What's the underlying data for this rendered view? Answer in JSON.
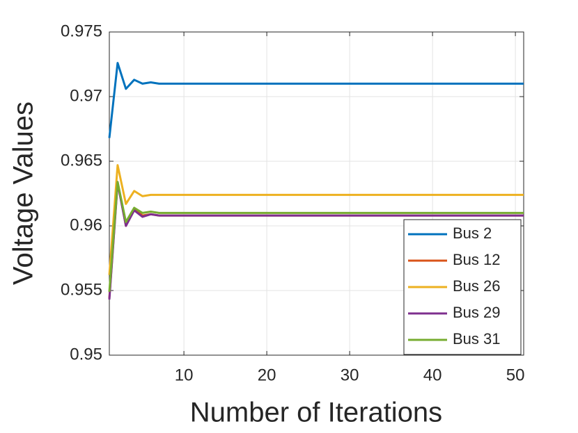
{
  "chart_data": {
    "type": "line",
    "xlabel": "Number of Iterations",
    "ylabel": "Voltage Values",
    "x": [
      1,
      2,
      3,
      4,
      5,
      6,
      7,
      8,
      9,
      10,
      11,
      12,
      13,
      14,
      15,
      16,
      17,
      18,
      19,
      20,
      21,
      22,
      23,
      24,
      25,
      26,
      27,
      28,
      29,
      30,
      31,
      32,
      33,
      34,
      35,
      36,
      37,
      38,
      39,
      40,
      41,
      42,
      43,
      44,
      45,
      46,
      47,
      48,
      49,
      50,
      51
    ],
    "series": [
      {
        "name": "Bus 2",
        "color": "#0072BD",
        "values": [
          0.9668,
          0.9726,
          0.9706,
          0.9713,
          0.971,
          0.9711,
          0.971,
          0.971,
          0.971,
          0.971,
          0.971,
          0.971,
          0.971,
          0.971,
          0.971,
          0.971,
          0.971,
          0.971,
          0.971,
          0.971,
          0.971,
          0.971,
          0.971,
          0.971,
          0.971,
          0.971,
          0.971,
          0.971,
          0.971,
          0.971,
          0.971,
          0.971,
          0.971,
          0.971,
          0.971,
          0.971,
          0.971,
          0.971,
          0.971,
          0.971,
          0.971,
          0.971,
          0.971,
          0.971,
          0.971,
          0.971,
          0.971,
          0.971,
          0.971,
          0.971,
          0.971
        ]
      },
      {
        "name": "Bus 12",
        "color": "#D95319",
        "values": [
          0.9544,
          0.9634,
          0.96,
          0.9613,
          0.9608,
          0.9609,
          0.9608,
          0.9608,
          0.9608,
          0.9608,
          0.9608,
          0.9608,
          0.9608,
          0.9608,
          0.9608,
          0.9608,
          0.9608,
          0.9608,
          0.9608,
          0.9608,
          0.9608,
          0.9608,
          0.9608,
          0.9608,
          0.9608,
          0.9608,
          0.9608,
          0.9608,
          0.9608,
          0.9608,
          0.9608,
          0.9608,
          0.9608,
          0.9608,
          0.9608,
          0.9608,
          0.9608,
          0.9608,
          0.9608,
          0.9608,
          0.9608,
          0.9608,
          0.9608,
          0.9608,
          0.9608,
          0.9608,
          0.9608,
          0.9608,
          0.9608,
          0.9608,
          0.9608
        ]
      },
      {
        "name": "Bus 26",
        "color": "#EDB120",
        "values": [
          0.9562,
          0.9647,
          0.9617,
          0.9627,
          0.9623,
          0.9624,
          0.9624,
          0.9624,
          0.9624,
          0.9624,
          0.9624,
          0.9624,
          0.9624,
          0.9624,
          0.9624,
          0.9624,
          0.9624,
          0.9624,
          0.9624,
          0.9624,
          0.9624,
          0.9624,
          0.9624,
          0.9624,
          0.9624,
          0.9624,
          0.9624,
          0.9624,
          0.9624,
          0.9624,
          0.9624,
          0.9624,
          0.9624,
          0.9624,
          0.9624,
          0.9624,
          0.9624,
          0.9624,
          0.9624,
          0.9624,
          0.9624,
          0.9624,
          0.9624,
          0.9624,
          0.9624,
          0.9624,
          0.9624,
          0.9624,
          0.9624,
          0.9624,
          0.9624
        ]
      },
      {
        "name": "Bus 29",
        "color": "#7E2F8E",
        "values": [
          0.9543,
          0.9633,
          0.96,
          0.9612,
          0.9607,
          0.9609,
          0.9608,
          0.9608,
          0.9608,
          0.9608,
          0.9608,
          0.9608,
          0.9608,
          0.9608,
          0.9608,
          0.9608,
          0.9608,
          0.9608,
          0.9608,
          0.9608,
          0.9608,
          0.9608,
          0.9608,
          0.9608,
          0.9608,
          0.9608,
          0.9608,
          0.9608,
          0.9608,
          0.9608,
          0.9608,
          0.9608,
          0.9608,
          0.9608,
          0.9608,
          0.9608,
          0.9608,
          0.9608,
          0.9608,
          0.9608,
          0.9608,
          0.9608,
          0.9608,
          0.9608,
          0.9608,
          0.9608,
          0.9608,
          0.9608,
          0.9608,
          0.9608,
          0.9608
        ]
      },
      {
        "name": "Bus 31",
        "color": "#77AC30",
        "values": [
          0.9549,
          0.9634,
          0.9603,
          0.9614,
          0.961,
          0.9611,
          0.961,
          0.961,
          0.961,
          0.961,
          0.961,
          0.961,
          0.961,
          0.961,
          0.961,
          0.961,
          0.961,
          0.961,
          0.961,
          0.961,
          0.961,
          0.961,
          0.961,
          0.961,
          0.961,
          0.961,
          0.961,
          0.961,
          0.961,
          0.961,
          0.961,
          0.961,
          0.961,
          0.961,
          0.961,
          0.961,
          0.961,
          0.961,
          0.961,
          0.961,
          0.961,
          0.961,
          0.961,
          0.961,
          0.961,
          0.961,
          0.961,
          0.961,
          0.961,
          0.961,
          0.961
        ]
      }
    ],
    "xlim": [
      1,
      51
    ],
    "xticks": [
      10,
      20,
      30,
      40,
      50
    ],
    "ylim": [
      0.95,
      0.975
    ],
    "yticks": [
      0.95,
      0.955,
      0.96,
      0.965,
      0.97,
      0.975
    ],
    "grid": true,
    "legend": "lower right"
  }
}
